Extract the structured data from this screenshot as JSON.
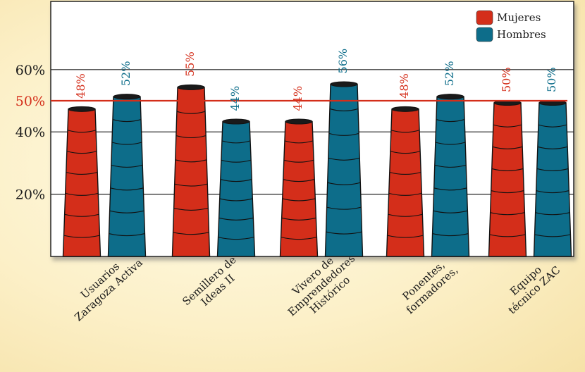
{
  "chart_data": {
    "type": "bar",
    "title": "",
    "xlabel": "",
    "ylabel": "",
    "ylim": [
      0,
      80
    ],
    "yticks": [
      20,
      40,
      50,
      60
    ],
    "ytick_labels": [
      "20%",
      "40%",
      "50%",
      "60%"
    ],
    "reference_line": {
      "value": 50,
      "label": "50%",
      "color": "#d42e1a"
    },
    "categories": [
      [
        "Usuarios",
        "Zaragoza Activa"
      ],
      [
        "Semillero de",
        "Ideas II"
      ],
      [
        "Vivero de",
        "Emprendedores",
        "Histórico"
      ],
      [
        "Ponentes,",
        "formadores,"
      ],
      [
        "Equipo",
        "técnico ZAC"
      ]
    ],
    "series": [
      {
        "name": "Mujeres",
        "color": "#d42e1a",
        "values": [
          48,
          55,
          44,
          48,
          50
        ],
        "labels": [
          "48%",
          "55%",
          "44%",
          "48%",
          "50%"
        ]
      },
      {
        "name": "Hombres",
        "color": "#0d6d8a",
        "values": [
          52,
          44,
          56,
          52,
          50
        ],
        "labels": [
          "52%",
          "44%",
          "56%",
          "52%",
          "50%"
        ]
      }
    ],
    "legend": {
      "position": "top-right",
      "items": [
        "Mujeres",
        "Hombres"
      ]
    },
    "grid": true
  }
}
